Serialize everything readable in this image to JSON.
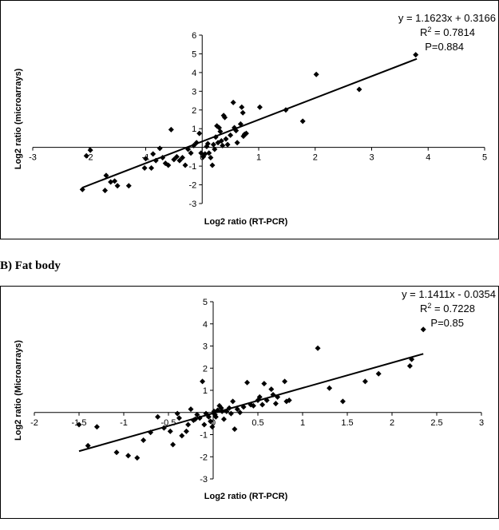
{
  "chart_data": [
    {
      "type": "scatter",
      "title": "",
      "xlabel": "Log2 ratio (RT-PCR)",
      "ylabel": "Log2 ratio (microarrays)",
      "xlim": [
        -3,
        5
      ],
      "ylim": [
        -3,
        6
      ],
      "x_ticks": [
        "-3",
        "-2",
        "-1",
        "0",
        "1",
        "2",
        "3",
        "4",
        "5"
      ],
      "y_ticks": [
        "-3",
        "-2",
        "-1",
        "1",
        "2",
        "3",
        "4",
        "5",
        "6"
      ],
      "grid": false,
      "legend": "none",
      "annotation": {
        "equation": "y = 1.1623x + 0.3166",
        "r2_prefix": "R",
        "r2_sup": "2",
        "r2_value": " = 0.7814",
        "p_value": "P=0.884"
      },
      "trendline": {
        "slope": 1.1623,
        "intercept": 0.3166,
        "x_range": [
          -2.12,
          3.8
        ]
      },
      "points": [
        [
          -2.12,
          -2.25
        ],
        [
          -2.05,
          -0.45
        ],
        [
          -1.98,
          -0.15
        ],
        [
          -1.72,
          -2.3
        ],
        [
          -1.7,
          -1.5
        ],
        [
          -1.62,
          -1.85
        ],
        [
          -1.55,
          -1.8
        ],
        [
          -1.5,
          -2.05
        ],
        [
          -1.3,
          -2.05
        ],
        [
          -1.02,
          -1.1
        ],
        [
          -1.0,
          -0.6
        ],
        [
          -0.9,
          -1.1
        ],
        [
          -0.87,
          -0.35
        ],
        [
          -0.82,
          -0.7
        ],
        [
          -0.75,
          -0.05
        ],
        [
          -0.7,
          -0.55
        ],
        [
          -0.65,
          -0.85
        ],
        [
          -0.6,
          -0.95
        ],
        [
          -0.55,
          0.95
        ],
        [
          -0.5,
          -0.65
        ],
        [
          -0.45,
          -0.5
        ],
        [
          -0.4,
          -0.7
        ],
        [
          -0.35,
          -0.55
        ],
        [
          -0.3,
          -0.95
        ],
        [
          -0.25,
          -0.1
        ],
        [
          -0.2,
          -0.3
        ],
        [
          -0.15,
          0.1
        ],
        [
          -0.1,
          0.25
        ],
        [
          -0.05,
          0.75
        ],
        [
          -0.02,
          -0.3
        ],
        [
          0.02,
          -0.5
        ],
        [
          0.05,
          -0.35
        ],
        [
          0.08,
          0.05
        ],
        [
          0.1,
          0.2
        ],
        [
          0.12,
          -0.3
        ],
        [
          0.15,
          -0.55
        ],
        [
          0.18,
          -0.95
        ],
        [
          0.2,
          0.15
        ],
        [
          0.22,
          -0.1
        ],
        [
          0.24,
          0.55
        ],
        [
          0.26,
          1.15
        ],
        [
          0.28,
          0.25
        ],
        [
          0.3,
          1.05
        ],
        [
          0.32,
          0.85
        ],
        [
          0.34,
          0.35
        ],
        [
          0.36,
          0.1
        ],
        [
          0.38,
          1.7
        ],
        [
          0.4,
          1.6
        ],
        [
          0.42,
          0.45
        ],
        [
          0.45,
          0.15
        ],
        [
          0.5,
          0.65
        ],
        [
          0.55,
          2.4
        ],
        [
          0.57,
          1.05
        ],
        [
          0.6,
          0.9
        ],
        [
          0.62,
          0.25
        ],
        [
          0.68,
          1.25
        ],
        [
          0.7,
          2.15
        ],
        [
          0.72,
          1.85
        ],
        [
          0.73,
          0.6
        ],
        [
          0.75,
          0.7
        ],
        [
          0.78,
          0.75
        ],
        [
          1.02,
          2.15
        ],
        [
          1.48,
          2.0
        ],
        [
          1.78,
          1.4
        ],
        [
          2.02,
          3.9
        ],
        [
          2.78,
          3.1
        ],
        [
          3.78,
          4.95
        ]
      ]
    },
    {
      "type": "scatter",
      "title": "",
      "heading": "B) Fat body",
      "xlabel": "Log2 ratio (RT-PCR)",
      "ylabel": "Log2 ratio (Microarrays)",
      "xlim": [
        -2,
        3
      ],
      "ylim": [
        -3,
        5
      ],
      "x_ticks": [
        "-2",
        "-1.5",
        "-1",
        "-0.5",
        "0",
        "0.5",
        "1",
        "1.5",
        "2",
        "2.5",
        "3"
      ],
      "y_ticks": [
        "-3",
        "-2",
        "-1",
        "1",
        "2",
        "3",
        "4",
        "5"
      ],
      "grid": false,
      "legend": "none",
      "annotation": {
        "equation": "y = 1.1411x - 0.0354",
        "r2_prefix": "R",
        "r2_sup": "2",
        "r2_value": " = 0.7228",
        "p_value": "P=0.85"
      },
      "trendline": {
        "slope": 1.1411,
        "intercept": -0.0354,
        "x_range": [
          -1.5,
          2.35
        ]
      },
      "points": [
        [
          -1.5,
          -0.55
        ],
        [
          -1.4,
          -1.5
        ],
        [
          -1.3,
          -0.65
        ],
        [
          -1.08,
          -1.8
        ],
        [
          -0.95,
          -1.95
        ],
        [
          -0.85,
          -2.05
        ],
        [
          -0.78,
          -1.25
        ],
        [
          -0.7,
          -0.9
        ],
        [
          -0.62,
          -0.2
        ],
        [
          -0.55,
          -0.7
        ],
        [
          -0.48,
          -0.85
        ],
        [
          -0.45,
          -1.45
        ],
        [
          -0.4,
          -0.05
        ],
        [
          -0.38,
          -0.25
        ],
        [
          -0.35,
          -1.05
        ],
        [
          -0.3,
          -0.85
        ],
        [
          -0.28,
          -0.55
        ],
        [
          -0.25,
          0.15
        ],
        [
          -0.22,
          -0.35
        ],
        [
          -0.2,
          -0.3
        ],
        [
          -0.18,
          -0.1
        ],
        [
          -0.15,
          -0.25
        ],
        [
          -0.12,
          1.4
        ],
        [
          -0.1,
          -0.55
        ],
        [
          -0.08,
          -0.05
        ],
        [
          -0.05,
          -0.2
        ],
        [
          -0.03,
          -0.4
        ],
        [
          -0.01,
          -0.65
        ],
        [
          0.01,
          0.05
        ],
        [
          0.02,
          -0.1
        ],
        [
          0.03,
          -0.2
        ],
        [
          0.05,
          0.1
        ],
        [
          0.07,
          0.3
        ],
        [
          0.09,
          0.2
        ],
        [
          0.1,
          0.05
        ],
        [
          0.12,
          -0.3
        ],
        [
          0.15,
          0.05
        ],
        [
          0.18,
          0.2
        ],
        [
          0.2,
          -0.05
        ],
        [
          0.22,
          0.5
        ],
        [
          0.24,
          -0.75
        ],
        [
          0.27,
          0.15
        ],
        [
          0.3,
          0.0
        ],
        [
          0.34,
          0.25
        ],
        [
          0.38,
          1.35
        ],
        [
          0.42,
          0.35
        ],
        [
          0.45,
          0.3
        ],
        [
          0.5,
          0.55
        ],
        [
          0.52,
          0.7
        ],
        [
          0.55,
          0.35
        ],
        [
          0.57,
          1.3
        ],
        [
          0.6,
          0.55
        ],
        [
          0.65,
          1.05
        ],
        [
          0.67,
          0.8
        ],
        [
          0.7,
          0.4
        ],
        [
          0.72,
          0.7
        ],
        [
          0.8,
          1.4
        ],
        [
          0.82,
          0.5
        ],
        [
          0.85,
          0.55
        ],
        [
          1.17,
          2.9
        ],
        [
          1.3,
          1.1
        ],
        [
          1.45,
          0.5
        ],
        [
          1.7,
          1.4
        ],
        [
          1.85,
          1.75
        ],
        [
          2.2,
          2.1
        ],
        [
          2.22,
          2.4
        ],
        [
          2.35,
          3.75
        ]
      ]
    }
  ]
}
